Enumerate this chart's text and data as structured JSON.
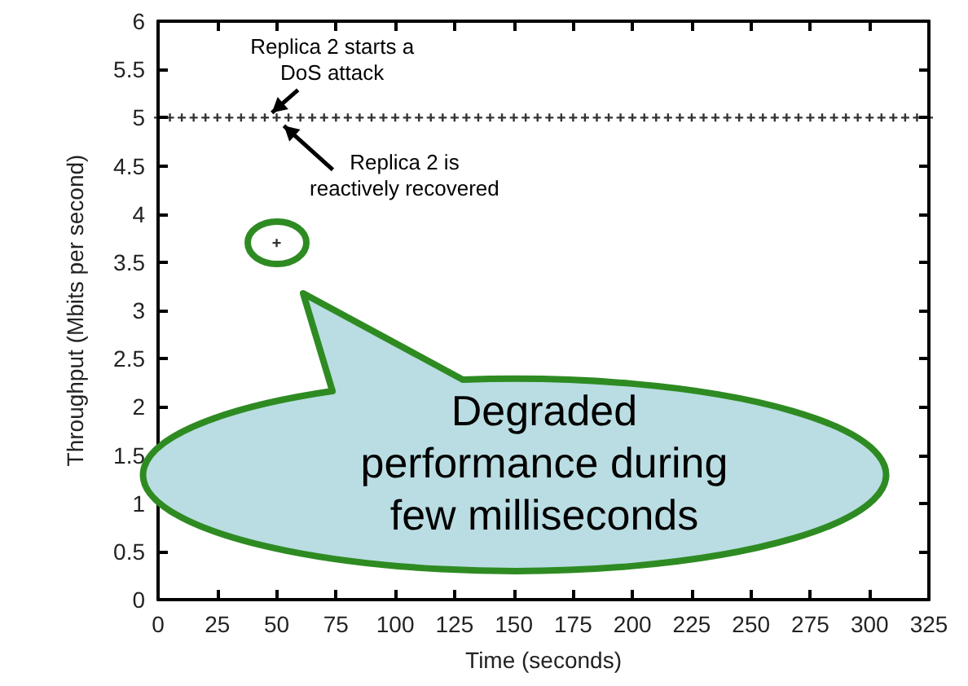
{
  "chart_data": {
    "type": "scatter",
    "xlabel": "Time (seconds)",
    "ylabel": "Throughput (Mbits per second)",
    "x": [
      0,
      5,
      10,
      15,
      20,
      25,
      30,
      35,
      40,
      45,
      50,
      50,
      55,
      60,
      65,
      70,
      75,
      80,
      85,
      90,
      95,
      100,
      105,
      110,
      115,
      120,
      125,
      130,
      135,
      140,
      145,
      150,
      155,
      160,
      165,
      170,
      175,
      180,
      185,
      190,
      195,
      200,
      205,
      210,
      215,
      220,
      225,
      230,
      235,
      240,
      245,
      250,
      255,
      260,
      265,
      270,
      275,
      280,
      285,
      290,
      295,
      300,
      305,
      310,
      315,
      320,
      325
    ],
    "series": [
      {
        "color": "#000000",
        "values": [
          5,
          5,
          5,
          5,
          5,
          5,
          5,
          5,
          5,
          5,
          5,
          3.7,
          5,
          5,
          5,
          5,
          5,
          5,
          5,
          5,
          5,
          5,
          5,
          5,
          5,
          5,
          5,
          5,
          5,
          5,
          5,
          5,
          5,
          5,
          5,
          5,
          5,
          5,
          5,
          5,
          5,
          5,
          5,
          5,
          5,
          5,
          5,
          5,
          5,
          5,
          5,
          5,
          5,
          5,
          5,
          5,
          5,
          5,
          5,
          5,
          5,
          5,
          5,
          5,
          5,
          5,
          5
        ]
      }
    ],
    "xlim": [
      0,
      325
    ],
    "xticks": [
      0,
      25,
      50,
      75,
      100,
      125,
      150,
      175,
      200,
      225,
      250,
      275,
      300,
      325
    ],
    "ylim": [
      0,
      6
    ],
    "yticks": [
      0,
      0.5,
      1,
      1.5,
      2,
      2.5,
      3,
      3.5,
      4,
      4.5,
      5,
      5.5,
      6
    ],
    "grid": false,
    "marker": "cross",
    "annotations": [
      {
        "text": "Replica 2 starts a\nDoS attack",
        "x": 48,
        "y": 5
      },
      {
        "text": "Replica 2 is\nreactively recovered",
        "x": 51,
        "y": 5
      },
      "Degraded\nperformance during\nfew milliseconds"
    ]
  }
}
